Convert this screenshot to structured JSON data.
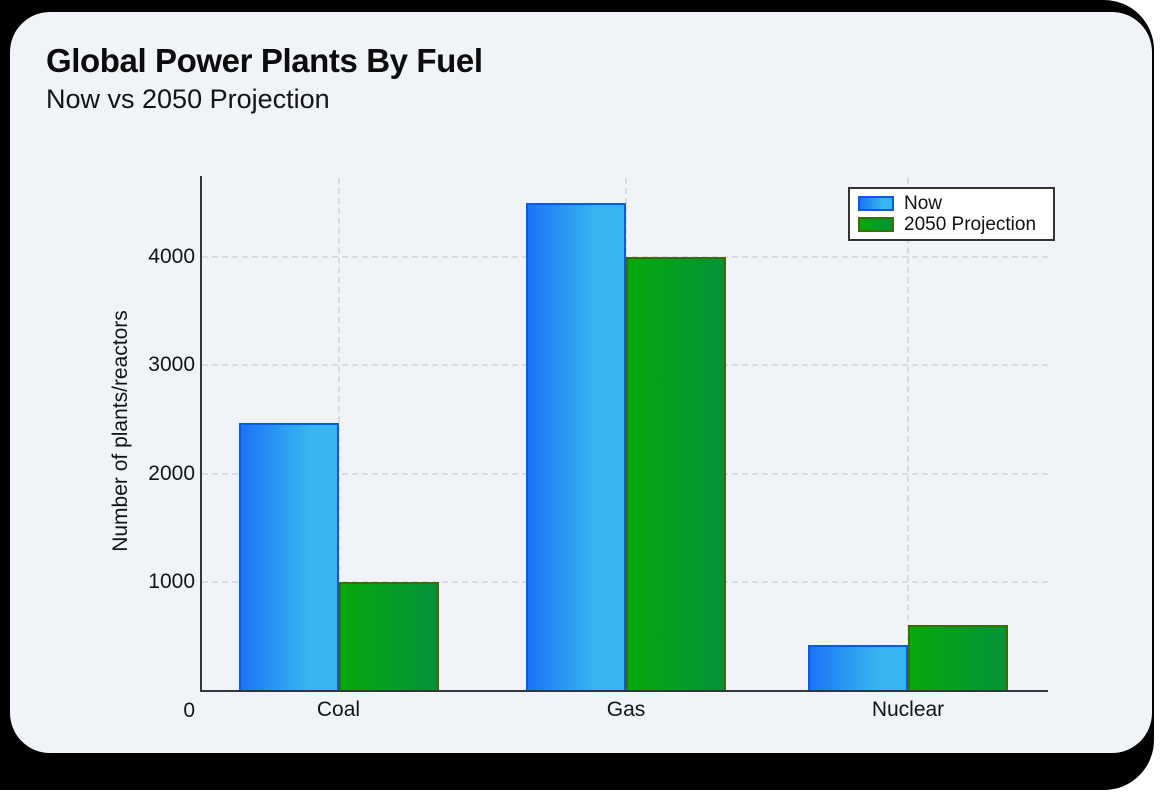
{
  "chart_data": {
    "type": "bar",
    "title": "Global Power Plants By Fuel",
    "subtitle": "Now vs 2050 Projection",
    "categories": [
      "Coal",
      "Gas",
      "Nuclear"
    ],
    "series": [
      {
        "name": "Now",
        "values": [
          2470,
          4500,
          420
        ]
      },
      {
        "name": "2050 Projection",
        "values": [
          1000,
          4000,
          600
        ]
      }
    ],
    "xlabel": "",
    "ylabel": "Number of plants/reactors",
    "yticks": [
      0,
      1000,
      2000,
      3000,
      4000
    ],
    "ylim": [
      0,
      4730
    ],
    "grid": "dashed horizontal and vertical at category centers",
    "legend_position": "top-right"
  },
  "colors": {
    "frame_background": "#000000",
    "card_background": "#f0f3f8",
    "now_fill_start": "#1b74f6",
    "now_fill_end": "#37b5ef",
    "now_border": "#0c59e8",
    "projection_fill_start": "#05a90c",
    "projection_fill_end": "#049139",
    "projection_border": "#3e6c00",
    "gridline": "#d8dade",
    "axis": "#33373d",
    "text": "#141414",
    "legend_background": "#ffffff",
    "legend_border": "#333333"
  }
}
